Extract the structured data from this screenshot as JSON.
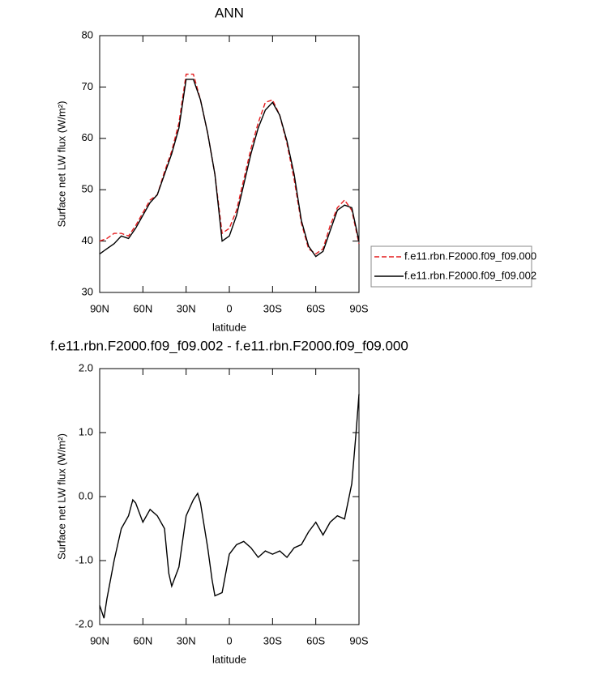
{
  "chart_data": [
    {
      "type": "line",
      "title": "ANN",
      "x_label": "latitude",
      "y_label": "Surface net LW flux (W/m²)",
      "x": [
        90,
        85,
        80,
        75,
        70,
        65,
        60,
        55,
        50,
        45,
        40,
        35,
        30,
        25,
        20,
        15,
        10,
        5,
        0,
        -5,
        -10,
        -15,
        -20,
        -25,
        -30,
        -35,
        -40,
        -45,
        -50,
        -55,
        -60,
        -65,
        -70,
        -75,
        -80,
        -85,
        -90
      ],
      "series": [
        {
          "name": "f.e11.rbn.F2000.f09_f09.000",
          "color": "#e41a1c",
          "line_style": "dashed",
          "values": [
            40,
            40.5,
            41.5,
            41.5,
            41,
            43,
            45.5,
            48,
            49,
            53.5,
            57.5,
            63,
            72.5,
            72.5,
            67.5,
            61,
            53,
            41.5,
            42.5,
            46,
            52,
            58,
            63,
            67,
            67.5,
            64.5,
            59,
            52,
            43.5,
            38.5,
            37.5,
            38.5,
            43,
            46.5,
            48,
            46,
            39.5
          ]
        },
        {
          "name": "f.e11.rbn.F2000.f09_f09.002",
          "color": "#000000",
          "line_style": "solid",
          "values": [
            37.5,
            38.5,
            39.5,
            41,
            40.5,
            42.5,
            45,
            47.5,
            49,
            53,
            57,
            62,
            71.5,
            71.5,
            67.5,
            61,
            53,
            40,
            41,
            45,
            51,
            57,
            62,
            65.5,
            67,
            64.5,
            59.5,
            53,
            44,
            39,
            37,
            38,
            42,
            46,
            47,
            46.5,
            40
          ]
        }
      ],
      "xlim": [
        90,
        -90
      ],
      "xticks": [
        {
          "value": 90,
          "label": "90N"
        },
        {
          "value": 60,
          "label": "60N"
        },
        {
          "value": 30,
          "label": "30N"
        },
        {
          "value": 0,
          "label": "0"
        },
        {
          "value": -30,
          "label": "30S"
        },
        {
          "value": -60,
          "label": "60S"
        },
        {
          "value": -90,
          "label": "90S"
        }
      ],
      "ylim": [
        30,
        80
      ],
      "yticks": [
        30,
        40,
        50,
        60,
        70,
        80
      ],
      "legend": "right"
    },
    {
      "type": "line",
      "title": "f.e11.rbn.F2000.f09_f09.002 - f.e11.rbn.F2000.f09_f09.000",
      "x_label": "latitude",
      "y_label": "Surface net LW flux (W/m²)",
      "x": [
        90,
        87,
        85,
        80,
        75,
        70,
        67,
        65,
        60,
        55,
        50,
        45,
        42,
        40,
        35,
        30,
        25,
        22,
        20,
        15,
        12,
        10,
        5,
        0,
        -5,
        -10,
        -15,
        -20,
        -25,
        -30,
        -35,
        -40,
        -45,
        -50,
        -55,
        -60,
        -65,
        -70,
        -75,
        -80,
        -85,
        -88,
        -90
      ],
      "series": [
        {
          "color": "#000000",
          "line_style": "solid",
          "values": [
            -1.7,
            -1.9,
            -1.6,
            -1.0,
            -0.5,
            -0.3,
            -0.05,
            -0.1,
            -0.4,
            -0.2,
            -0.3,
            -0.5,
            -1.2,
            -1.4,
            -1.1,
            -0.3,
            -0.05,
            0.05,
            -0.1,
            -0.8,
            -1.3,
            -1.55,
            -1.5,
            -0.9,
            -0.75,
            -0.7,
            -0.8,
            -0.95,
            -0.85,
            -0.9,
            -0.85,
            -0.95,
            -0.8,
            -0.75,
            -0.55,
            -0.4,
            -0.6,
            -0.4,
            -0.3,
            -0.35,
            0.2,
            1.0,
            1.6
          ]
        }
      ],
      "xlim": [
        90,
        -90
      ],
      "xticks": [
        {
          "value": 90,
          "label": "90N"
        },
        {
          "value": 60,
          "label": "60N"
        },
        {
          "value": 30,
          "label": "30N"
        },
        {
          "value": 0,
          "label": "0"
        },
        {
          "value": -30,
          "label": "30S"
        },
        {
          "value": -60,
          "label": "60S"
        },
        {
          "value": -90,
          "label": "90S"
        }
      ],
      "ylim": [
        -2,
        2
      ],
      "yticks": [
        {
          "value": -2,
          "label": "-2.0"
        },
        {
          "value": -1,
          "label": "-1.0"
        },
        {
          "value": 0,
          "label": "0.0"
        },
        {
          "value": 1,
          "label": "1.0"
        },
        {
          "value": 2,
          "label": "2.0"
        }
      ]
    }
  ]
}
